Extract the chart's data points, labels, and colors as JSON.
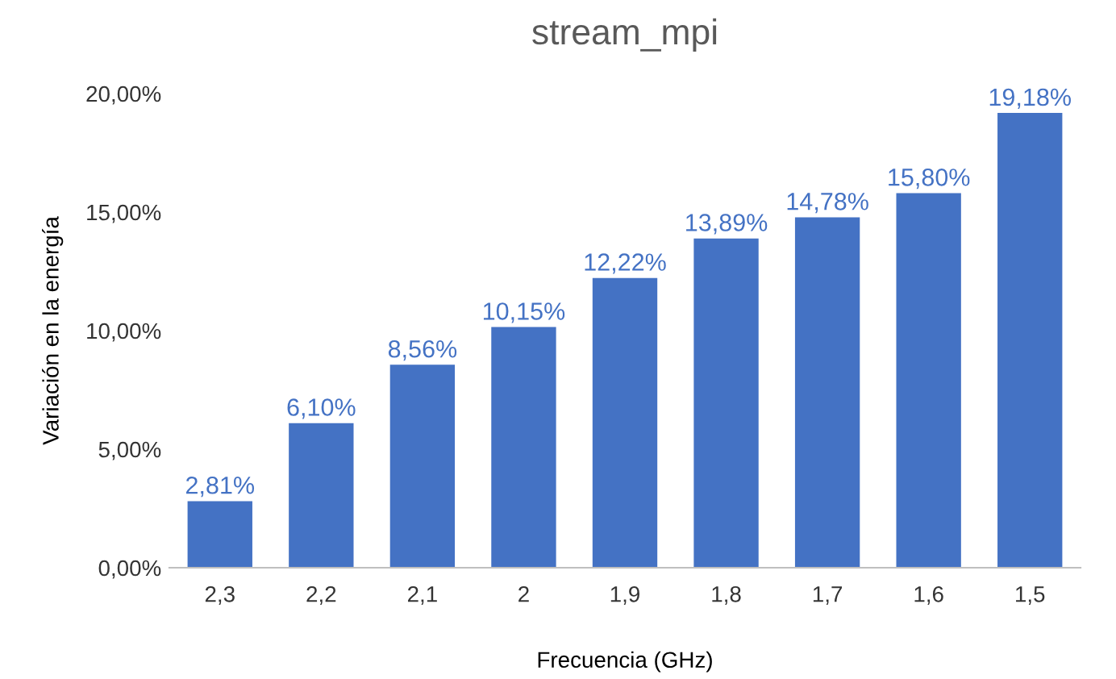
{
  "chart_data": {
    "type": "bar",
    "title": "stream_mpi",
    "xlabel": "Frecuencia (GHz)",
    "ylabel": "Variación en la energía",
    "categories": [
      "2,3",
      "2,2",
      "2,1",
      "2",
      "1,9",
      "1,8",
      "1,7",
      "1,6",
      "1,5"
    ],
    "values": [
      2.81,
      6.1,
      8.56,
      10.15,
      12.22,
      13.89,
      14.78,
      15.8,
      19.18
    ],
    "value_labels": [
      "2,81%",
      "6,10%",
      "8,56%",
      "10,15%",
      "12,22%",
      "13,89%",
      "14,78%",
      "15,80%",
      "19,18%"
    ],
    "color": "#4472c4",
    "ylim": [
      0,
      20
    ],
    "yticks": [
      {
        "value": 0,
        "label": "0,00%"
      },
      {
        "value": 5,
        "label": "5,00%"
      },
      {
        "value": 10,
        "label": "10,00%"
      },
      {
        "value": 15,
        "label": "15,00%"
      },
      {
        "value": 20,
        "label": "20,00%"
      }
    ],
    "grid": false,
    "legend": false
  }
}
